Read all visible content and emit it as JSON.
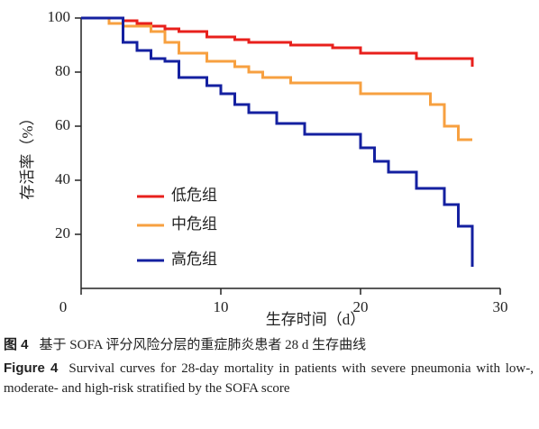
{
  "chart_data": {
    "type": "step",
    "xlabel": "生存时间（d）",
    "ylabel": "存活率（%）",
    "xlim": [
      0,
      30
    ],
    "xticks": [
      0,
      10,
      20,
      30
    ],
    "ylim": [
      0,
      100
    ],
    "yticks": [
      20,
      40,
      60,
      80,
      100
    ],
    "legend": "lower-left",
    "series": [
      {
        "name": "低危组",
        "color": "#e8201c",
        "x": [
          0,
          3,
          4,
          5,
          6,
          7,
          9,
          11,
          12,
          15,
          18,
          20,
          24,
          28
        ],
        "values": [
          100,
          99,
          98,
          97,
          96,
          95,
          93,
          92,
          91,
          90,
          89,
          87,
          85,
          82
        ]
      },
      {
        "name": "中危组",
        "color": "#f7a040",
        "x": [
          0,
          2,
          3,
          5,
          6,
          7,
          9,
          11,
          12,
          13,
          15,
          20,
          25,
          26,
          27,
          28
        ],
        "values": [
          100,
          98,
          97,
          95,
          91,
          87,
          84,
          82,
          80,
          78,
          76,
          72,
          68,
          60,
          55,
          55
        ]
      },
      {
        "name": "高危组",
        "color": "#1420a0",
        "x": [
          0,
          3,
          4,
          5,
          6,
          7,
          9,
          10,
          11,
          12,
          14,
          16,
          20,
          21,
          22,
          24,
          26,
          27,
          28
        ],
        "values": [
          100,
          91,
          88,
          85,
          84,
          78,
          75,
          72,
          68,
          65,
          61,
          57,
          52,
          47,
          43,
          37,
          31,
          23,
          8
        ]
      }
    ],
    "caption": {
      "label_zh": "图 4",
      "text_zh": "基于 SOFA 评分风险分层的重症肺炎患者 28 d 生存曲线",
      "label_en": "Figure 4",
      "text_en": "Survival curves for 28-day mortality in patients with severe pneumonia with low-, moderate- and high-risk stratified by the SOFA score"
    }
  }
}
